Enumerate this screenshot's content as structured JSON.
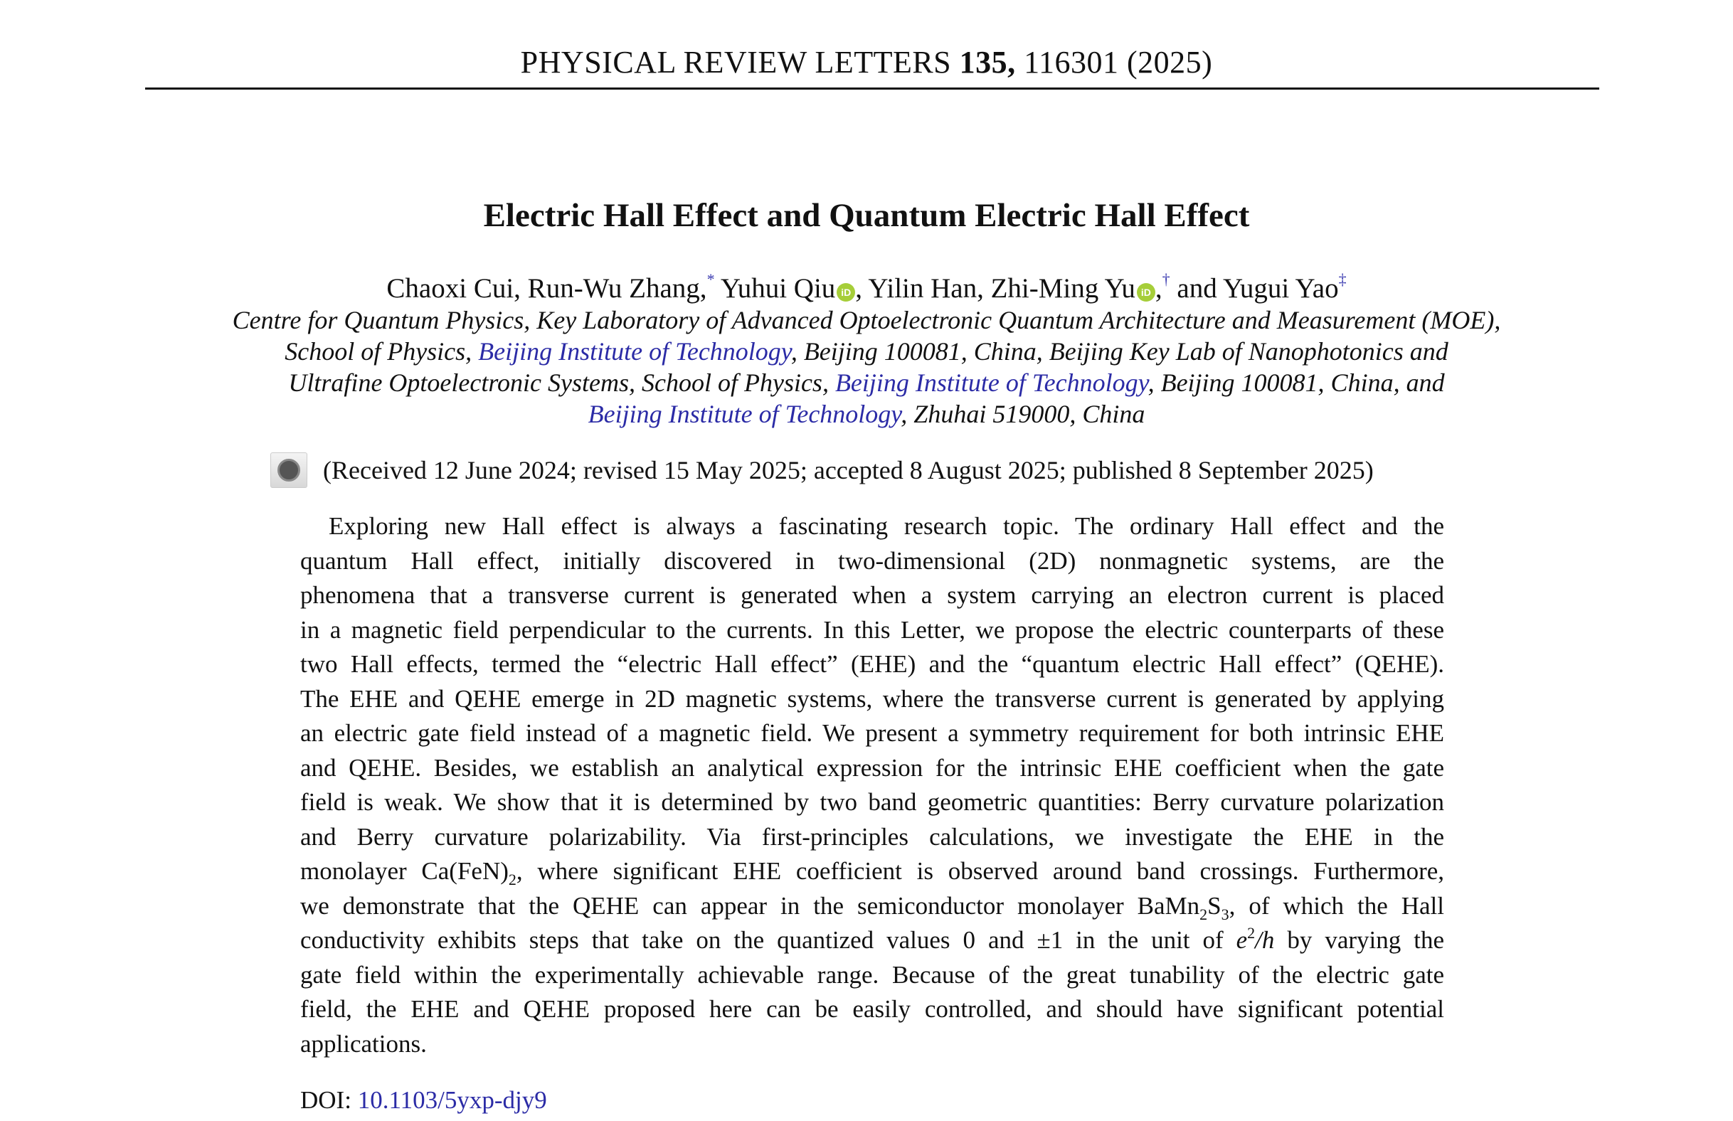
{
  "journal": {
    "name": "PHYSICAL REVIEW LETTERS",
    "volume": "135,",
    "article": "116301 (2025)"
  },
  "title": "Electric Hall Effect and Quantum Electric Hall Effect",
  "authors": {
    "a1": "Chaoxi Cui, Run-Wu Zhang,",
    "m1": "*",
    "a2": " Yuhui Qiu",
    "a3": ", Yilin Han, Zhi-Ming Yu",
    "a4": ",",
    "m2": "†",
    "a5": " and Yugui Yao",
    "m3": "‡",
    "orcid_label": "iD"
  },
  "affiliation": {
    "l1": "Centre for Quantum Physics, Key Laboratory of Advanced Optoelectronic Quantum Architecture and Measurement (MOE),",
    "l2a": "School of Physics, ",
    "link": "Beijing Institute of Technology",
    "l2b": ", Beijing 100081, China, Beijing Key Lab of Nanophotonics and",
    "l3a": "Ultrafine Optoelectronic Systems, School of Physics, ",
    "l3b": ", Beijing 100081, China, and",
    "l4b": ", Zhuhai 519000, China"
  },
  "received": "(Received 12 June 2024; revised 15 May 2025; accepted 8 August 2025; published 8 September 2025)",
  "abstract": {
    "lines": [
      "Exploring new Hall effect is always a fascinating research topic. The ordinary Hall effect and the",
      "quantum Hall effect, initially discovered in two-dimensional (2D) nonmagnetic systems, are the",
      "phenomena that a transverse current is generated when a system carrying an electron current is placed",
      "in a magnetic field perpendicular to the currents. In this Letter, we propose the electric counterparts of these",
      "two Hall effects, termed the “electric Hall effect” (EHE) and the “quantum electric Hall effect” (QEHE).",
      "The EHE and QEHE emerge in 2D magnetic systems, where the transverse current is generated by applying",
      "an electric gate field instead of a magnetic field. We present a symmetry requirement for both intrinsic EHE",
      "and QEHE. Besides, we establish an analytical expression for the intrinsic EHE coefficient when the gate",
      "field is weak. We show that it is determined by two band geometric quantities: Berry curvature polarization",
      "and Berry curvature polarizability. Via first-principles calculations, we investigate the EHE in the"
    ],
    "l11a": "monolayer Ca(FeN)",
    "l11sub": "2",
    "l11b": ", where significant EHE coefficient is observed around band crossings. Furthermore,",
    "l12a": "we demonstrate that the QEHE can appear in the semiconductor monolayer BaMn",
    "l12sub1": "2",
    "l12mid": "S",
    "l12sub2": "3",
    "l12b": ", of which the Hall",
    "l13a": "conductivity exhibits steps that take on the quantized values 0 and ±1 in the unit of ",
    "l13e": "e",
    "l13sup": "2",
    "l13h": "/h",
    "l13b": " by varying the",
    "l14": "gate field within the experimentally achievable range. Because of the great tunability of the electric gate",
    "l15": "field, the EHE and QEHE proposed here can be easily controlled, and should have significant potential",
    "l16": "applications."
  },
  "doi": {
    "label": "DOI: ",
    "value": "10.1103/5yxp-djy9"
  },
  "colors": {
    "link": "#2b2ba6",
    "orcid": "#a6ce39"
  },
  "icons": {
    "check_for_updates": "crossmark-icon",
    "orcid": "orcid-icon"
  }
}
